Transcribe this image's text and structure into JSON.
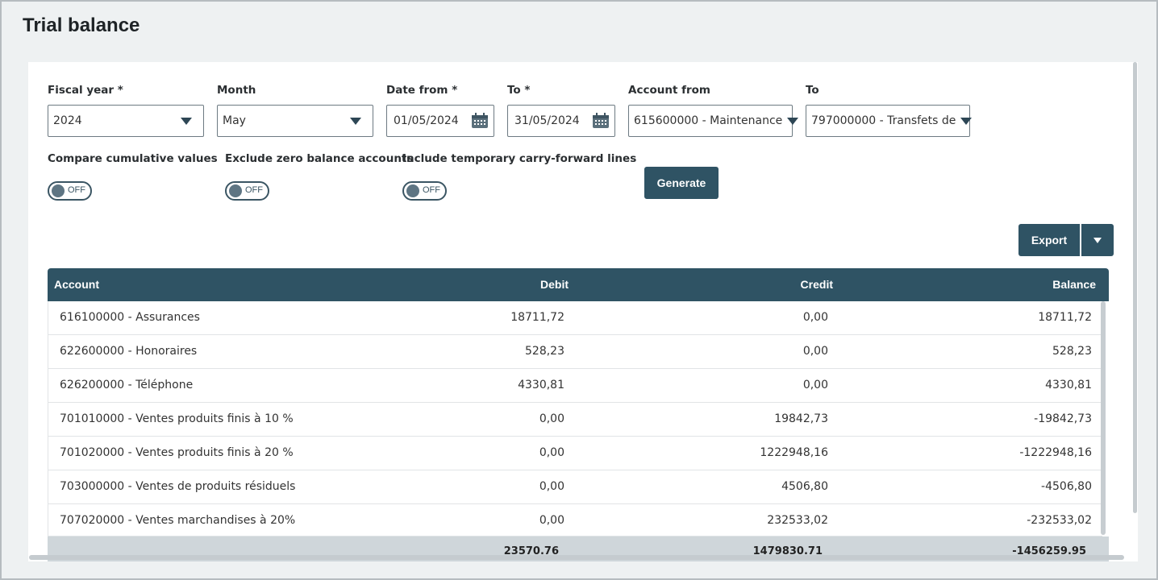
{
  "page": {
    "title": "Trial balance"
  },
  "filters": {
    "fiscal_year": {
      "label": "Fiscal year *",
      "value": "2024"
    },
    "month": {
      "label": "Month",
      "value": "May"
    },
    "date_from": {
      "label": "Date from *",
      "value": "01/05/2024"
    },
    "date_to": {
      "label": "To *",
      "value": "31/05/2024"
    },
    "account_from": {
      "label": "Account from",
      "value": "615600000 - Maintenance"
    },
    "account_to": {
      "label": "To",
      "value": "797000000 - Transfets de"
    }
  },
  "toggles": [
    {
      "label": "Compare cumulative values",
      "state": "OFF"
    },
    {
      "label": "Exclude zero balance accounts",
      "state": "OFF"
    },
    {
      "label": "Include temporary carry-forward lines",
      "state": "OFF"
    }
  ],
  "actions": {
    "generate_label": "Generate",
    "export_label": "Export"
  },
  "table": {
    "headers": {
      "account": "Account",
      "debit": "Debit",
      "credit": "Credit",
      "balance": "Balance"
    },
    "rows": [
      {
        "account": "616100000 - Assurances",
        "debit": "18711,72",
        "credit": "0,00",
        "balance": "18711,72"
      },
      {
        "account": "622600000 - Honoraires",
        "debit": "528,23",
        "credit": "0,00",
        "balance": "528,23"
      },
      {
        "account": "626200000 - Téléphone",
        "debit": "4330,81",
        "credit": "0,00",
        "balance": "4330,81"
      },
      {
        "account": "701010000 - Ventes produits finis à 10 %",
        "debit": "0,00",
        "credit": "19842,73",
        "balance": "-19842,73"
      },
      {
        "account": "701020000 - Ventes produits finis à 20 %",
        "debit": "0,00",
        "credit": "1222948,16",
        "balance": "-1222948,16"
      },
      {
        "account": "703000000 - Ventes de produits résiduels",
        "debit": "0,00",
        "credit": "4506,80",
        "balance": "-4506,80"
      },
      {
        "account": "707020000 - Ventes marchandises à 20%",
        "debit": "0,00",
        "credit": "232533,02",
        "balance": "-232533,02"
      }
    ],
    "totals": {
      "debit": "23570.76",
      "credit": "1479830.71",
      "balance": "-1456259.95"
    }
  },
  "colors": {
    "accent": "#2f5364",
    "page_bg": "#eef1f2",
    "totals_bg": "#cfd6da"
  }
}
